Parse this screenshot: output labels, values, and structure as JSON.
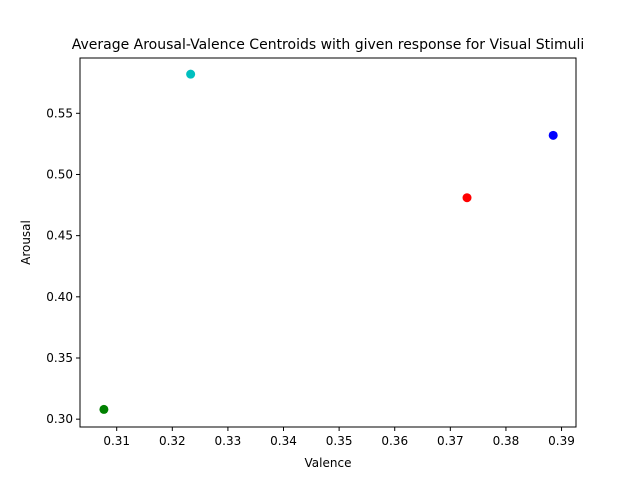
{
  "chart_data": {
    "type": "scatter",
    "title": "Average Arousal-Valence Centroids with given response for Visual Stimuli",
    "xlabel": "Valence",
    "ylabel": "Arousal",
    "xlim": [
      0.3034,
      0.3926
    ],
    "ylim": [
      0.2936,
      0.5952
    ],
    "xticks": [
      0.31,
      0.32,
      0.33,
      0.34,
      0.35,
      0.36,
      0.37,
      0.38,
      0.39
    ],
    "xtick_labels": [
      "0.31",
      "0.32",
      "0.33",
      "0.34",
      "0.35",
      "0.36",
      "0.37",
      "0.38",
      "0.39"
    ],
    "yticks": [
      0.3,
      0.35,
      0.4,
      0.45,
      0.5,
      0.55
    ],
    "ytick_labels": [
      "0.30",
      "0.35",
      "0.40",
      "0.45",
      "0.50",
      "0.55"
    ],
    "grid": false,
    "points": [
      {
        "x": 0.3233,
        "y": 0.582,
        "color": "#00bfbf"
      },
      {
        "x": 0.3885,
        "y": 0.532,
        "color": "#0000ff"
      },
      {
        "x": 0.373,
        "y": 0.481,
        "color": "#ff0000"
      },
      {
        "x": 0.3077,
        "y": 0.308,
        "color": "#008000"
      }
    ]
  }
}
